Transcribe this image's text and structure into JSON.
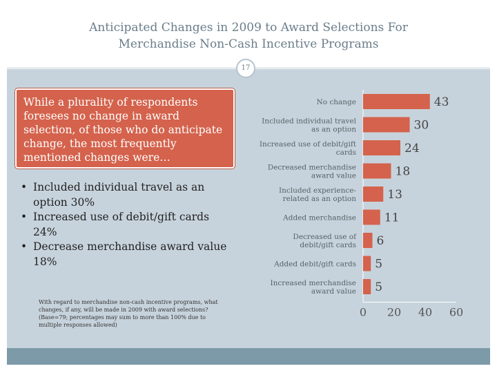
{
  "slide": {
    "title_line1": "Anticipated Changes in 2009 to Award Selections For",
    "title_line2": "Merchandise Non-Cash Incentive Programs",
    "page_number": "17",
    "callout": "While a plurality of respondents foresees no change in award selection, of those who do anticipate change, the most frequently mentioned changes were…",
    "bullets": [
      "Included individual travel as an option 30%",
      "Increased use of debit/gift cards 24%",
      "Decrease merchandise award value 18%"
    ],
    "footnote": "With regard to merchandise non-cash incentive programs, what changes, if any, will be made in 2009 with award selections? (Base=79; percentages may sum to more than 100% due to multiple responses allowed)"
  },
  "chart_data": {
    "type": "bar",
    "orientation": "horizontal",
    "categories": [
      [
        "No change"
      ],
      [
        "Included individual travel",
        "as an option"
      ],
      [
        "Increased use of debit/gift",
        "cards"
      ],
      [
        "Decreased merchandise",
        "award value"
      ],
      [
        "Included experience-",
        "related as an option"
      ],
      [
        "Added merchandise"
      ],
      [
        "Decreased use of",
        "debit/gift cards"
      ],
      [
        "Added debit/gift cards"
      ],
      [
        "Increased merchandise",
        "award value"
      ]
    ],
    "values": [
      43,
      30,
      24,
      18,
      13,
      11,
      6,
      5,
      5
    ],
    "xlim": [
      0,
      60
    ],
    "xticks": [
      0,
      20,
      40,
      60
    ],
    "bar_color": "#d4624c",
    "title": "",
    "xlabel": "",
    "ylabel": ""
  }
}
